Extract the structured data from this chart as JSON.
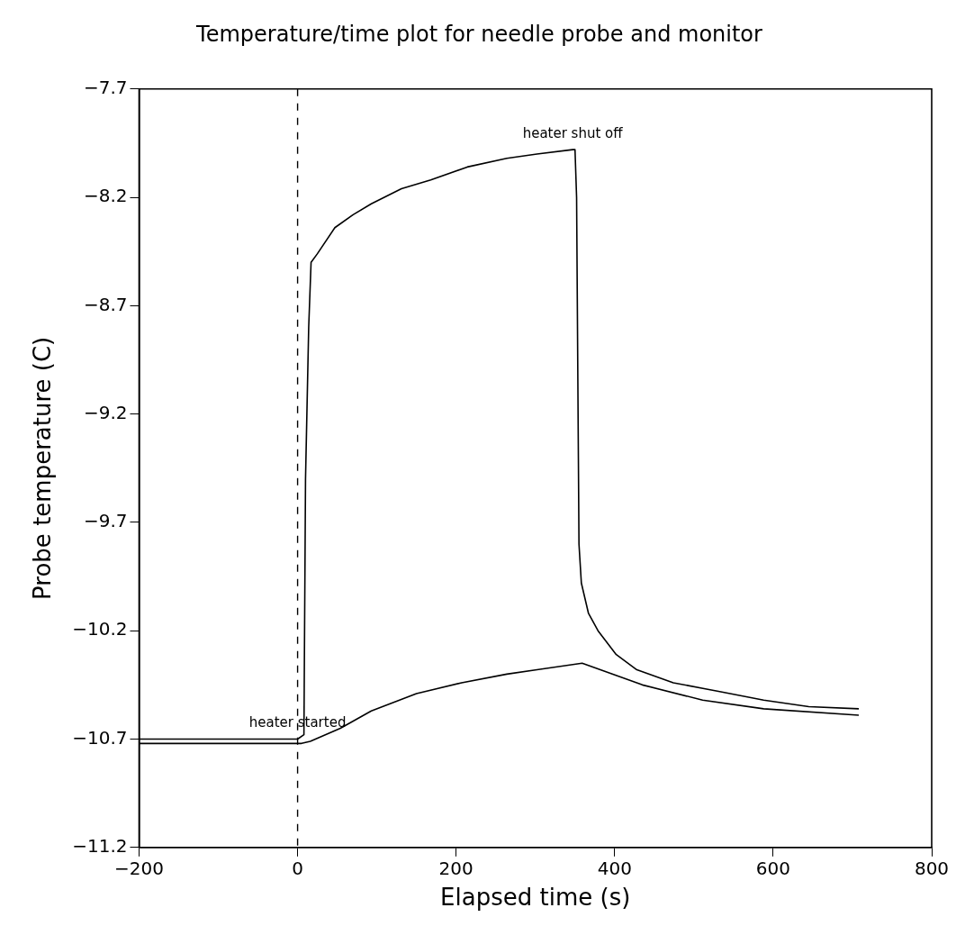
{
  "chart_data": {
    "type": "line",
    "title": "Temperature/time plot for needle probe and monitor",
    "xlabel": "Elapsed time (s)",
    "ylabel": "Probe temperature (C)",
    "xlim": [
      -200,
      800
    ],
    "xticks": [
      -200,
      0,
      200,
      400,
      600,
      800
    ],
    "ylim": [
      -11.2,
      -7.7
    ],
    "yticks": [
      -11.2,
      -10.7,
      -10.2,
      -9.7,
      -9.2,
      -8.7,
      -8.2,
      -7.7
    ],
    "grid": false,
    "legend": false,
    "marker": "none",
    "line_style": "solid",
    "ref_lines": [
      {
        "axis": "x",
        "value": 0,
        "label": null,
        "color": "#000000",
        "line_style": "dashed"
      }
    ],
    "annotations": [
      {
        "text": "heater shut off",
        "x": 347,
        "y": -7.98
      },
      {
        "text": "heater started",
        "x": 0,
        "y": -10.7
      }
    ],
    "series": [
      {
        "color": "#000000",
        "x": [
          -200,
          0,
          8,
          10,
          14,
          17,
          25,
          47,
          70,
          93,
          131,
          168,
          214,
          264,
          302,
          347,
          350,
          352,
          355,
          358,
          367,
          379,
          402,
          428,
          474,
          531,
          588,
          645,
          708
        ],
        "values": [
          -10.7,
          -10.7,
          -10.68,
          -9.5,
          -8.8,
          -8.5,
          -8.46,
          -8.34,
          -8.28,
          -8.23,
          -8.16,
          -8.12,
          -8.06,
          -8.02,
          -8.0,
          -7.98,
          -7.98,
          -8.2,
          -9.8,
          -9.98,
          -10.12,
          -10.2,
          -10.31,
          -10.38,
          -10.44,
          -10.48,
          -10.52,
          -10.55,
          -10.56
        ]
      },
      {
        "color": "#000000",
        "x": [
          -200,
          5,
          16,
          54,
          93,
          150,
          207,
          264,
          302,
          359,
          397,
          435,
          511,
          588,
          708
        ],
        "values": [
          -10.72,
          -10.72,
          -10.71,
          -10.65,
          -10.57,
          -10.49,
          -10.44,
          -10.4,
          -10.38,
          -10.35,
          -10.4,
          -10.45,
          -10.52,
          -10.56,
          -10.59
        ]
      }
    ]
  }
}
